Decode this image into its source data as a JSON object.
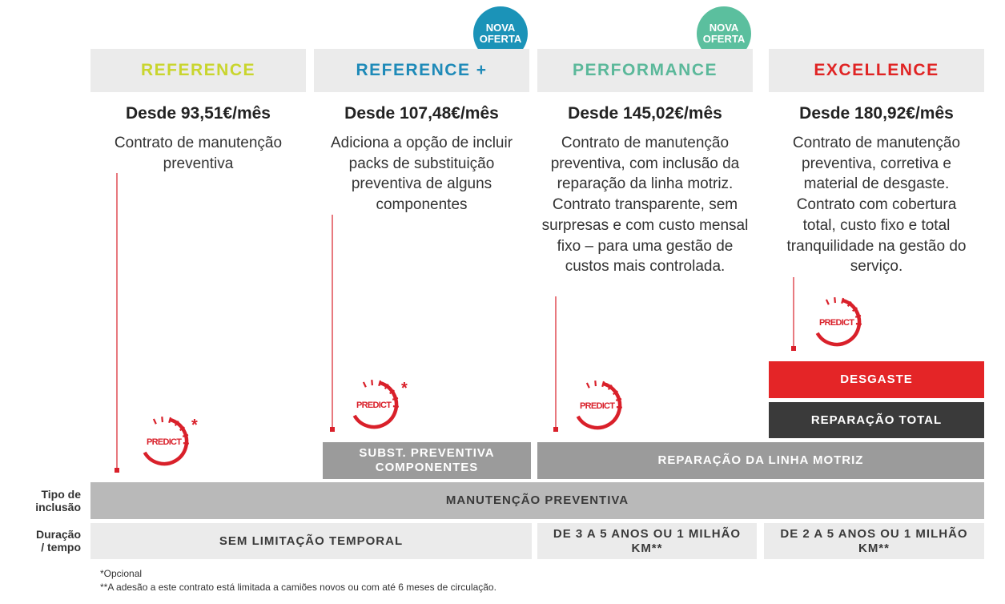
{
  "plans": [
    {
      "name": "REFERENCE",
      "price": "Desde 93,51€/mês",
      "description": [
        "Contrato de manutenção",
        "preventiva"
      ],
      "icon_label": "PREDICT",
      "icon_note": "*"
    },
    {
      "name": "REFERENCE +",
      "badge": [
        "NOVA",
        "OFERTA"
      ],
      "price": "Desde 107,48€/mês",
      "description": [
        "Adiciona a opção de incluir",
        "packs de substituição",
        "preventiva de alguns",
        "componentes"
      ],
      "icon_label": "PREDICT",
      "icon_note": "*"
    },
    {
      "name": "PERFORMANCE",
      "badge": [
        "NOVA",
        "OFERTA"
      ],
      "price": "Desde 145,02€/mês",
      "description": [
        "Contrato de manutenção",
        "preventiva, com inclusão da",
        "reparação da linha motriz.",
        "Contrato transparente, sem",
        "surpresas e com custo mensal",
        "fixo – para uma gestão de",
        "custos mais controlada."
      ],
      "icon_label": "PREDICT"
    },
    {
      "name": "EXCELLENCE",
      "price": "Desde 180,92€/mês",
      "description": [
        "Contrato de manutenção",
        "preventiva, corretiva e",
        "material de desgaste.",
        "Contrato com cobertura",
        "total, custo fixo e total",
        "tranquilidade na gestão do",
        "serviço."
      ],
      "icon_label": "PREDICT"
    }
  ],
  "inclusions": {
    "desgaste": "DESGASTE",
    "reparacao_total": "REPARAÇÃO TOTAL",
    "subst_preventiva": [
      "SUBST. PREVENTIVA",
      "COMPONENTES"
    ],
    "linha_motriz": "REPARAÇÃO DA LINHA MOTRIZ",
    "manutencao": "MANUTENÇÃO PREVENTIVA"
  },
  "row_labels": {
    "inclusion": [
      "Tipo de",
      "inclusão"
    ],
    "duration": [
      "Duração",
      "/ tempo"
    ]
  },
  "durations": [
    "SEM LIMITAÇÃO TEMPORAL",
    "DE 3 A 5 ANOS OU 1 MILHÃO KM**",
    "DE 2 A 5 ANOS OU 1 MILHÃO KM**"
  ],
  "footnotes": [
    "*Opcional",
    "**A adesão a este contrato está limitada a camiões novos ou com até 6 meses de circulação."
  ]
}
